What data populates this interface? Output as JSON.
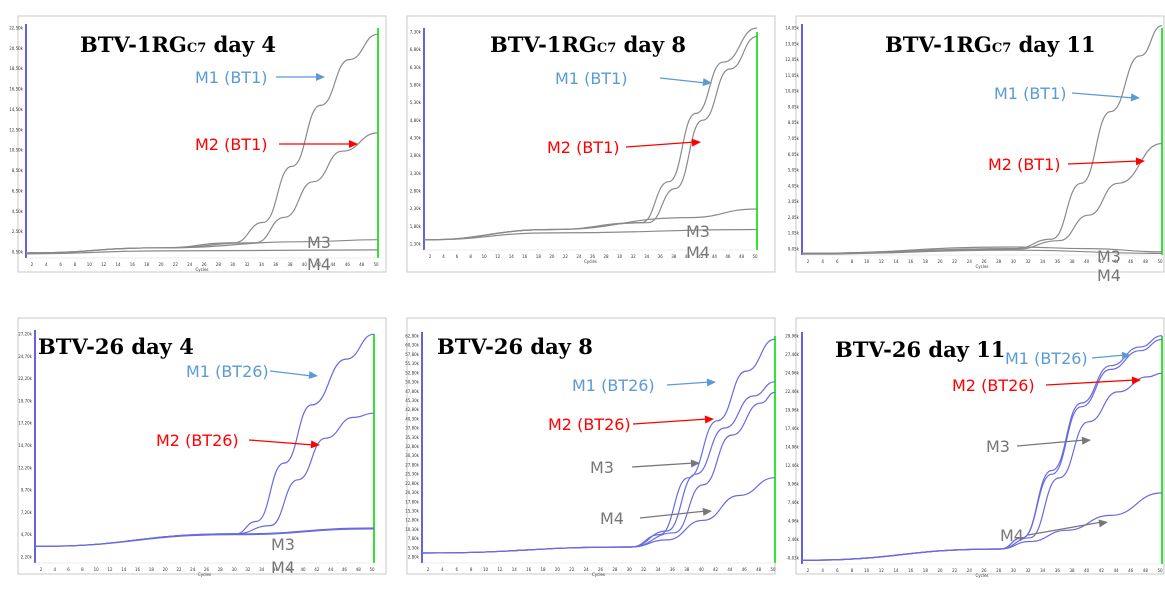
{
  "colors": {
    "blue": "#5b9bd5",
    "red": "#ff0000",
    "gray": "#777777",
    "curve_gray": "#8a8a8a",
    "curve_blue": "#6a6ae0",
    "left_axis": "#3b3bd6",
    "end_line": "#00dd00"
  },
  "chart_data": [
    {
      "type": "line",
      "title": "BTV-1RG",
      "title_sub": "C7",
      "title_suffix": " day 4",
      "xlabel": "Cycles",
      "x_ticks": [
        "2",
        "4",
        "6",
        "8",
        "10",
        "12",
        "14",
        "16",
        "18",
        "20",
        "22",
        "24",
        "26",
        "28",
        "30",
        "32",
        "34",
        "36",
        "38",
        "40",
        "42",
        "44",
        "46",
        "48",
        "50"
      ],
      "y_ticks": [
        "0,50k",
        "2,50k",
        "4,50k",
        "6,50k",
        "8,50k",
        "10,50k",
        "12,50k",
        "14,50k",
        "16,50k",
        "18,50k",
        "20,50k",
        "22,50k"
      ],
      "xlim": [
        1,
        50
      ],
      "ylim": [
        0,
        23000
      ],
      "series": [
        {
          "name": "M1 (BT1)",
          "label_color": "red_blue",
          "color_key": "blue",
          "values": [
            [
              1,
              500
            ],
            [
              20,
              1000
            ],
            [
              30,
              1500
            ],
            [
              34,
              3500
            ],
            [
              38,
              9000
            ],
            [
              42,
              15000
            ],
            [
              46,
              19500
            ],
            [
              50,
              22000
            ]
          ]
        },
        {
          "name": "M2 (BT1)",
          "color_key": "red",
          "values": [
            [
              1,
              500
            ],
            [
              20,
              1000
            ],
            [
              33,
              1500
            ],
            [
              37,
              4000
            ],
            [
              41,
              7500
            ],
            [
              45,
              10500
            ],
            [
              50,
              12300
            ]
          ]
        },
        {
          "name": "M3",
          "color_key": "gray",
          "values": [
            [
              1,
              500
            ],
            [
              20,
              1000
            ],
            [
              40,
              1600
            ],
            [
              50,
              1800
            ]
          ]
        },
        {
          "name": "M4",
          "color_key": "gray",
          "values": [
            [
              1,
              400
            ],
            [
              20,
              700
            ],
            [
              50,
              800
            ]
          ]
        }
      ]
    },
    {
      "type": "line",
      "title": "BTV-1RG",
      "title_sub": "C7",
      "title_suffix": " day 8",
      "xlabel": "Cycles",
      "x_ticks": [
        "2",
        "4",
        "6",
        "8",
        "10",
        "12",
        "14",
        "16",
        "18",
        "20",
        "22",
        "24",
        "26",
        "28",
        "30",
        "32",
        "34",
        "36",
        "38",
        "40",
        "42",
        "44",
        "46",
        "48",
        "50"
      ],
      "y_ticks": [
        "1,30k",
        "1,80k",
        "2,30k",
        "2,80k",
        "3,30k",
        "3,80k",
        "4,30k",
        "4,80k",
        "5,30k",
        "5,80k",
        "6,30k",
        "6,80k",
        "7,30k"
      ],
      "xlim": [
        1,
        50
      ],
      "ylim": [
        1000,
        7500
      ],
      "series": [
        {
          "name": "M1 (BT1)",
          "color_key": "blue",
          "values": [
            [
              1,
              1300
            ],
            [
              20,
              1600
            ],
            [
              33,
              1800
            ],
            [
              37,
              3000
            ],
            [
              41,
              5000
            ],
            [
              45,
              6500
            ],
            [
              50,
              7500
            ]
          ]
        },
        {
          "name": "M2 (BT1)",
          "color_key": "red",
          "values": [
            [
              1,
              1300
            ],
            [
              20,
              1600
            ],
            [
              34,
              1800
            ],
            [
              38,
              2800
            ],
            [
              42,
              4800
            ],
            [
              46,
              6300
            ],
            [
              50,
              7250
            ]
          ]
        },
        {
          "name": "M3",
          "color_key": "gray",
          "values": [
            [
              1,
              1300
            ],
            [
              20,
              1600
            ],
            [
              40,
              1950
            ],
            [
              50,
              2200
            ]
          ]
        },
        {
          "name": "M4",
          "color_key": "gray",
          "values": [
            [
              1,
              1300
            ],
            [
              20,
              1500
            ],
            [
              50,
              1600
            ]
          ]
        }
      ]
    },
    {
      "type": "line",
      "title": "BTV-1RG",
      "title_sub": "C7",
      "title_suffix": " day 11",
      "xlabel": "Cycles",
      "x_ticks": [
        "2",
        "4",
        "6",
        "8",
        "10",
        "12",
        "14",
        "16",
        "18",
        "20",
        "22",
        "24",
        "26",
        "28",
        "30",
        "32",
        "34",
        "36",
        "38",
        "40",
        "42",
        "44",
        "46",
        "48",
        "50"
      ],
      "y_ticks": [
        "0,05k",
        "1,05k",
        "2,05k",
        "3,05k",
        "4,05k",
        "5,05k",
        "6,05k",
        "7,05k",
        "8,05k",
        "9,05k",
        "10,05k",
        "11,05k",
        "12,05k",
        "13,05k",
        "14,05k"
      ],
      "xlim": [
        1,
        50
      ],
      "ylim": [
        0,
        14500
      ],
      "series": [
        {
          "name": "M1 (BT1)",
          "color_key": "blue",
          "values": [
            [
              1,
              100
            ],
            [
              30,
              400
            ],
            [
              35,
              1000
            ],
            [
              39,
              4500
            ],
            [
              43,
              9000
            ],
            [
              47,
              12500
            ],
            [
              50,
              14400
            ]
          ]
        },
        {
          "name": "M2 (BT1)",
          "color_key": "red",
          "values": [
            [
              1,
              100
            ],
            [
              30,
              350
            ],
            [
              36,
              900
            ],
            [
              40,
              2500
            ],
            [
              44,
              4500
            ],
            [
              50,
              7000
            ]
          ]
        },
        {
          "name": "M3",
          "color_key": "gray",
          "values": [
            [
              1,
              100
            ],
            [
              30,
              500
            ],
            [
              40,
              400
            ],
            [
              50,
              200
            ]
          ]
        },
        {
          "name": "M4",
          "color_key": "gray",
          "values": [
            [
              1,
              50
            ],
            [
              30,
              300
            ],
            [
              50,
              100
            ]
          ]
        }
      ]
    },
    {
      "type": "line",
      "title": "BTV-26 day 4",
      "xlabel": "Cycles",
      "x_ticks": [
        "2",
        "4",
        "6",
        "8",
        "10",
        "12",
        "14",
        "16",
        "18",
        "20",
        "22",
        "24",
        "26",
        "28",
        "30",
        "32",
        "34",
        "36",
        "38",
        "40",
        "42",
        "44",
        "46",
        "48",
        "50"
      ],
      "y_ticks": [
        "2,20k",
        "4,70k",
        "7,20k",
        "9,70k",
        "12,20k",
        "14,70k",
        "17,20k",
        "19,70k",
        "22,20k",
        "24,70k",
        "27,20k"
      ],
      "xlim": [
        1,
        50
      ],
      "ylim": [
        0,
        28000
      ],
      "series": [
        {
          "name": "M1 (BT26)",
          "color_key": "blue",
          "values": [
            [
              1,
              2000
            ],
            [
              30,
              3500
            ],
            [
              33,
              5000
            ],
            [
              37,
              12000
            ],
            [
              41,
              19000
            ],
            [
              46,
              24500
            ],
            [
              50,
              27500
            ]
          ]
        },
        {
          "name": "M2 (BT26)",
          "color_key": "red",
          "values": [
            [
              1,
              2000
            ],
            [
              30,
              3500
            ],
            [
              35,
              4500
            ],
            [
              39,
              10000
            ],
            [
              43,
              15000
            ],
            [
              47,
              17500
            ],
            [
              50,
              18000
            ]
          ]
        },
        {
          "name": "M3",
          "color_key": "gray",
          "values": [
            [
              1,
              2000
            ],
            [
              30,
              3500
            ],
            [
              50,
              4200
            ]
          ]
        },
        {
          "name": "M4",
          "color_key": "gray",
          "values": [
            [
              1,
              2000
            ],
            [
              30,
              3400
            ],
            [
              50,
              4100
            ]
          ]
        }
      ]
    },
    {
      "type": "line",
      "title": "BTV-26 day 8",
      "xlabel": "Cycles",
      "x_ticks": [
        "2",
        "4",
        "6",
        "8",
        "10",
        "12",
        "14",
        "16",
        "18",
        "20",
        "22",
        "24",
        "26",
        "28",
        "30",
        "32",
        "34",
        "36",
        "38",
        "40",
        "42",
        "44",
        "46",
        "48",
        "50"
      ],
      "y_ticks": [
        "2,80k",
        "5,30k",
        "7,80k",
        "10,30k",
        "12,80k",
        "15,30k",
        "17,80k",
        "20,30k",
        "22,80k",
        "25,30k",
        "27,80k",
        "30,30k",
        "32,80k",
        "35,30k",
        "37,80k",
        "40,30k",
        "42,80k",
        "45,30k",
        "47,80k",
        "50,30k",
        "52,80k",
        "55,30k",
        "57,80k",
        "60,30k",
        "62,80k"
      ],
      "xlim": [
        1,
        50
      ],
      "ylim": [
        0,
        65000
      ],
      "series": [
        {
          "name": "M1 (BT26)",
          "color_key": "blue",
          "values": [
            [
              1,
              2800
            ],
            [
              30,
              4500
            ],
            [
              34,
              8000
            ],
            [
              38,
              24000
            ],
            [
              42,
              40000
            ],
            [
              46,
              54000
            ],
            [
              50,
              63000
            ]
          ]
        },
        {
          "name": "M2 (BT26)",
          "color_key": "red",
          "values": [
            [
              1,
              2800
            ],
            [
              30,
              4500
            ],
            [
              35,
              9000
            ],
            [
              39,
              25000
            ],
            [
              43,
              38000
            ],
            [
              47,
              47000
            ],
            [
              50,
              51000
            ]
          ]
        },
        {
          "name": "M3",
          "color_key": "gray",
          "values": [
            [
              1,
              2800
            ],
            [
              30,
              4500
            ],
            [
              36,
              8500
            ],
            [
              40,
              22000
            ],
            [
              44,
              36000
            ],
            [
              48,
              45000
            ],
            [
              50,
              48000
            ]
          ]
        },
        {
          "name": "M4",
          "color_key": "gray",
          "values": [
            [
              1,
              2800
            ],
            [
              30,
              4500
            ],
            [
              35,
              6500
            ],
            [
              40,
              12000
            ],
            [
              45,
              19000
            ],
            [
              50,
              24000
            ]
          ]
        }
      ]
    },
    {
      "type": "line",
      "title": "BTV-26 day 11",
      "xlabel": "Cycles",
      "x_ticks": [
        "2",
        "4",
        "6",
        "8",
        "10",
        "12",
        "14",
        "16",
        "18",
        "20",
        "22",
        "24",
        "26",
        "28",
        "30",
        "32",
        "34",
        "36",
        "38",
        "40",
        "42",
        "44",
        "46",
        "48",
        "50"
      ],
      "y_ticks": [
        "-0,03k",
        "2,46k",
        "4,96k",
        "7,46k",
        "9,96k",
        "12,46k",
        "14,96k",
        "17,46k",
        "19,96k",
        "22,46k",
        "24,96k",
        "27,46k",
        "29,96k"
      ],
      "xlim": [
        1,
        50
      ],
      "ylim": [
        -500,
        30500
      ],
      "series": [
        {
          "name": "M1 (BT26)",
          "color_key": "blue",
          "values": [
            [
              1,
              0
            ],
            [
              28,
              1500
            ],
            [
              31,
              3000
            ],
            [
              35,
              12000
            ],
            [
              39,
              21000
            ],
            [
              43,
              26000
            ],
            [
              47,
              28500
            ],
            [
              50,
              30000
            ]
          ]
        },
        {
          "name": "M2 (BT26)",
          "color_key": "red",
          "values": [
            [
              1,
              0
            ],
            [
              28,
              1500
            ],
            [
              31,
              3000
            ],
            [
              35,
              11500
            ],
            [
              39,
              20500
            ],
            [
              43,
              25500
            ],
            [
              47,
              28000
            ],
            [
              50,
              29500
            ]
          ]
        },
        {
          "name": "M3",
          "color_key": "gray",
          "values": [
            [
              1,
              0
            ],
            [
              28,
              1500
            ],
            [
              32,
              3000
            ],
            [
              36,
              11000
            ],
            [
              40,
              18500
            ],
            [
              44,
              22500
            ],
            [
              48,
              24500
            ],
            [
              50,
              25000
            ]
          ]
        },
        {
          "name": "M4",
          "color_key": "gray",
          "values": [
            [
              1,
              0
            ],
            [
              28,
              1500
            ],
            [
              32,
              2500
            ],
            [
              37,
              4000
            ],
            [
              43,
              6000
            ],
            [
              50,
              9000
            ]
          ]
        }
      ]
    }
  ],
  "annotations": [
    [
      {
        "text": "M1 (BT1)",
        "color_key": "blue",
        "arrow": true
      },
      {
        "text": "M2 (BT1)",
        "color_key": "red",
        "arrow": true
      },
      {
        "text": "M3",
        "color_key": "gray",
        "arrow": false
      },
      {
        "text": "M4",
        "color_key": "gray",
        "arrow": false
      }
    ],
    [
      {
        "text": "M1 (BT1)",
        "color_key": "blue",
        "arrow": true
      },
      {
        "text": "M2 (BT1)",
        "color_key": "red",
        "arrow": true
      },
      {
        "text": "M3",
        "color_key": "gray",
        "arrow": false
      },
      {
        "text": "M4",
        "color_key": "gray",
        "arrow": false
      }
    ],
    [
      {
        "text": "M1 (BT1)",
        "color_key": "blue",
        "arrow": true
      },
      {
        "text": "M2 (BT1)",
        "color_key": "red",
        "arrow": true
      },
      {
        "text": "M3",
        "color_key": "gray",
        "arrow": false
      },
      {
        "text": "M4",
        "color_key": "gray",
        "arrow": false
      }
    ],
    [
      {
        "text": "M1 (BT26)",
        "color_key": "blue",
        "arrow": true
      },
      {
        "text": "M2 (BT26)",
        "color_key": "red",
        "arrow": true
      },
      {
        "text": "M3",
        "color_key": "gray",
        "arrow": false
      },
      {
        "text": "M4",
        "color_key": "gray",
        "arrow": false
      }
    ],
    [
      {
        "text": "M1 (BT26)",
        "color_key": "blue",
        "arrow": true
      },
      {
        "text": "M2 (BT26)",
        "color_key": "red",
        "arrow": true
      },
      {
        "text": "M3",
        "color_key": "gray",
        "arrow": true
      },
      {
        "text": "M4",
        "color_key": "gray",
        "arrow": true
      }
    ],
    [
      {
        "text": "M1 (BT26)",
        "color_key": "blue",
        "arrow": true
      },
      {
        "text": "M2 (BT26)",
        "color_key": "red",
        "arrow": true
      },
      {
        "text": "M3",
        "color_key": "gray",
        "arrow": true
      },
      {
        "text": "M4",
        "color_key": "gray",
        "arrow": true
      }
    ]
  ]
}
